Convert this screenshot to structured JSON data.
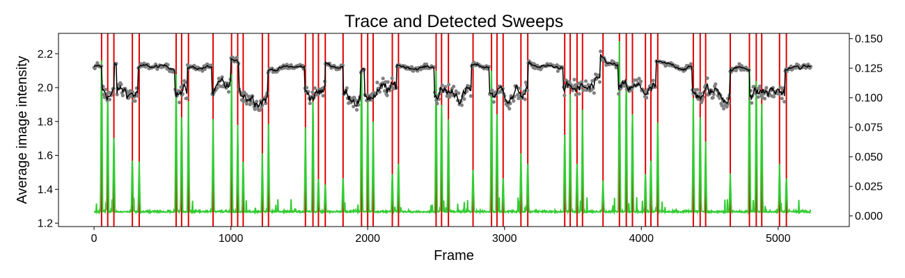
{
  "chart_data": {
    "type": "line",
    "title": "Trace and Detected Sweeps",
    "xlabel": "Frame",
    "ylabel": "Average image intensity",
    "y2label": "",
    "xlim": [
      -260,
      5520
    ],
    "ylim": [
      1.18,
      2.32
    ],
    "y2lim": [
      -0.009,
      0.1545
    ],
    "xticks": [
      0,
      1000,
      2000,
      3000,
      4000,
      5000
    ],
    "yticks": [
      1.2,
      1.4,
      1.6,
      1.8,
      2.0,
      2.2
    ],
    "yticklabels": [
      "1.2",
      "1.4",
      "1.6",
      "1.8",
      "2.0",
      "2.2"
    ],
    "y2ticks": [
      0.0,
      0.025,
      0.05,
      0.075,
      0.1,
      0.125,
      0.15
    ],
    "y2ticklabels": [
      "0.000",
      "0.025",
      "0.050",
      "0.075",
      "0.100",
      "0.125",
      "0.150"
    ],
    "grid": false,
    "colors": {
      "raw_points": "#808080",
      "smoothed_trace": "#000000",
      "sweep_signal": "#33cc33",
      "sweep_markers": "#e00000"
    },
    "trace_levels": {
      "high_level": 2.12,
      "low_level": 1.97,
      "high_segments": [
        [
          0,
          55
        ],
        [
          145,
          165
        ],
        [
          320,
          590
        ],
        [
          680,
          860
        ],
        [
          1000,
          1060
        ],
        [
          1270,
          1540
        ],
        [
          1690,
          1820
        ],
        [
          1950,
          1980
        ],
        [
          2210,
          2490
        ],
        [
          2760,
          2890
        ],
        [
          3170,
          3430
        ],
        [
          3700,
          3830
        ],
        [
          4110,
          4370
        ],
        [
          4650,
          4790
        ],
        [
          5050,
          5240
        ]
      ],
      "low_segments": [
        [
          55,
          145
        ],
        [
          165,
          320
        ],
        [
          590,
          680
        ],
        [
          860,
          1000
        ],
        [
          1060,
          1270
        ],
        [
          1540,
          1690
        ],
        [
          1820,
          1950
        ],
        [
          1980,
          2210
        ],
        [
          2490,
          2760
        ],
        [
          2890,
          3170
        ],
        [
          3430,
          3700
        ],
        [
          3830,
          4110
        ],
        [
          4370,
          4650
        ],
        [
          4790,
          5050
        ]
      ]
    },
    "sweep_signal_baseline": 0.003,
    "sweep_peaks": [
      {
        "x": 55,
        "y": 0.15
      },
      {
        "x": 100,
        "y": 0.115
      },
      {
        "x": 145,
        "y": 0.075
      },
      {
        "x": 280,
        "y": 0.053
      },
      {
        "x": 330,
        "y": 0.046
      },
      {
        "x": 600,
        "y": 0.12
      },
      {
        "x": 640,
        "y": 0.095
      },
      {
        "x": 690,
        "y": 0.097
      },
      {
        "x": 870,
        "y": 0.082
      },
      {
        "x": 1005,
        "y": 0.12
      },
      {
        "x": 1050,
        "y": 0.077
      },
      {
        "x": 1090,
        "y": 0.052
      },
      {
        "x": 1230,
        "y": 0.053
      },
      {
        "x": 1275,
        "y": 0.078
      },
      {
        "x": 1545,
        "y": 0.075
      },
      {
        "x": 1600,
        "y": 0.11
      },
      {
        "x": 1640,
        "y": 0.035
      },
      {
        "x": 1690,
        "y": 0.03
      },
      {
        "x": 1820,
        "y": 0.036
      },
      {
        "x": 1955,
        "y": 0.138
      },
      {
        "x": 2000,
        "y": 0.11
      },
      {
        "x": 2040,
        "y": 0.08
      },
      {
        "x": 2180,
        "y": 0.04
      },
      {
        "x": 2225,
        "y": 0.05
      },
      {
        "x": 2500,
        "y": 0.14
      },
      {
        "x": 2540,
        "y": 0.107
      },
      {
        "x": 2590,
        "y": 0.093
      },
      {
        "x": 2770,
        "y": 0.044
      },
      {
        "x": 2905,
        "y": 0.14
      },
      {
        "x": 2945,
        "y": 0.098
      },
      {
        "x": 2990,
        "y": 0.036
      },
      {
        "x": 3120,
        "y": 0.053
      },
      {
        "x": 3170,
        "y": 0.05
      },
      {
        "x": 3440,
        "y": 0.078
      },
      {
        "x": 3480,
        "y": 0.103
      },
      {
        "x": 3530,
        "y": 0.05
      },
      {
        "x": 3570,
        "y": 0.09
      },
      {
        "x": 3720,
        "y": 0.03
      },
      {
        "x": 3840,
        "y": 0.148
      },
      {
        "x": 3890,
        "y": 0.13
      },
      {
        "x": 3935,
        "y": 0.098
      },
      {
        "x": 4030,
        "y": 0.04
      },
      {
        "x": 4070,
        "y": 0.053
      },
      {
        "x": 4120,
        "y": 0.09
      },
      {
        "x": 4380,
        "y": 0.1
      },
      {
        "x": 4430,
        "y": 0.095
      },
      {
        "x": 4470,
        "y": 0.063
      },
      {
        "x": 4650,
        "y": 0.036
      },
      {
        "x": 4790,
        "y": 0.143
      },
      {
        "x": 4840,
        "y": 0.13
      },
      {
        "x": 4880,
        "y": 0.108
      },
      {
        "x": 5010,
        "y": 0.044
      },
      {
        "x": 5060,
        "y": 0.036
      }
    ],
    "sweep_lines_x": [
      55,
      100,
      145,
      280,
      330,
      600,
      640,
      690,
      870,
      1005,
      1050,
      1090,
      1230,
      1275,
      1545,
      1600,
      1640,
      1690,
      1820,
      1955,
      2000,
      2040,
      2180,
      2225,
      2500,
      2540,
      2590,
      2770,
      2905,
      2945,
      2990,
      3120,
      3170,
      3440,
      3480,
      3530,
      3570,
      3720,
      3840,
      3890,
      3935,
      4030,
      4070,
      4120,
      4380,
      4430,
      4470,
      4650,
      4790,
      4840,
      4880,
      5010,
      5060
    ],
    "frame_range": [
      0,
      5240
    ]
  }
}
